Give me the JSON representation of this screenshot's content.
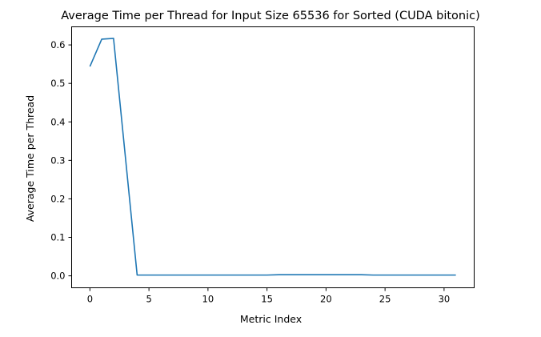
{
  "chart_data": {
    "type": "line",
    "title": "Average Time per Thread for Input Size 65536 for Sorted (CUDA bitonic)",
    "xlabel": "Metric Index",
    "ylabel": "Average Time per Thread",
    "xlim": [
      -1.55,
      32.55
    ],
    "ylim": [
      -0.031,
      0.647
    ],
    "xticks": [
      0,
      5,
      10,
      15,
      20,
      25,
      30
    ],
    "yticks": [
      0.0,
      0.1,
      0.2,
      0.3,
      0.4,
      0.5,
      0.6
    ],
    "ytick_labels": [
      "0.0",
      "0.1",
      "0.2",
      "0.3",
      "0.4",
      "0.5",
      "0.6"
    ],
    "grid": false,
    "series": [
      {
        "color": "#1f77b4",
        "x": [
          0,
          1,
          2,
          3,
          4,
          5,
          6,
          7,
          8,
          9,
          10,
          11,
          12,
          13,
          14,
          15,
          16,
          17,
          18,
          19,
          20,
          21,
          22,
          23,
          24,
          25,
          26,
          27,
          28,
          29,
          30,
          31
        ],
        "y": [
          0.544,
          0.615,
          0.617,
          0.31,
          0.002,
          0.002,
          0.002,
          0.002,
          0.002,
          0.002,
          0.002,
          0.002,
          0.002,
          0.002,
          0.002,
          0.002,
          0.003,
          0.003,
          0.003,
          0.003,
          0.003,
          0.003,
          0.003,
          0.003,
          0.002,
          0.002,
          0.002,
          0.002,
          0.002,
          0.002,
          0.002,
          0.002
        ]
      }
    ]
  }
}
